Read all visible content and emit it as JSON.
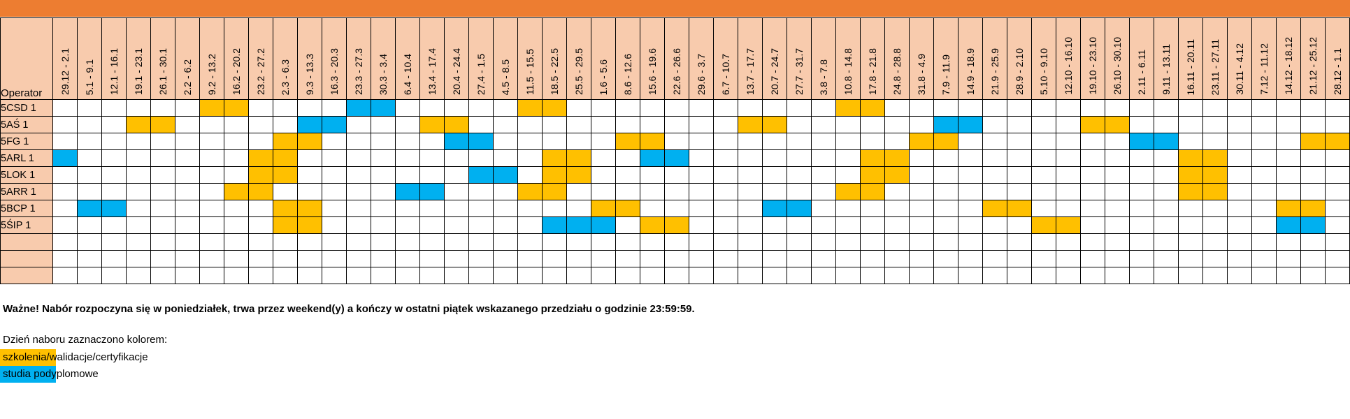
{
  "colors": {
    "top_band": "#ED7D31",
    "header_fill": "#F8CBAD",
    "training": "#FFC000",
    "postgrad": "#00B0F0",
    "empty": "#FFFFFF"
  },
  "table": {
    "operator_header": "Operator",
    "weeks": [
      "29.12 - 2.1",
      "5.1 - 9.1",
      "12.1 - 16.1",
      "19.1 - 23.1",
      "26.1 - 30.1",
      "2.2 - 6.2",
      "9.2 - 13.2",
      "16.2 - 20.2",
      "23.2 - 27.2",
      "2.3 - 6.3",
      "9.3 - 13.3",
      "16.3 - 20.3",
      "23.3 - 27.3",
      "30.3 - 3.4",
      "6.4 - 10.4",
      "13.4 - 17.4",
      "20.4 - 24.4",
      "27.4 - 1.5",
      "4.5 - 8.5",
      "11.5 - 15.5",
      "18.5 - 22.5",
      "25.5 - 29.5",
      "1.6 - 5.6",
      "8.6 - 12.6",
      "15.6 - 19.6",
      "22.6 - 26.6",
      "29.6 - 3.7",
      "6.7 - 10.7",
      "13.7 - 17.7",
      "20.7 - 24.7",
      "27.7 - 31.7",
      "3.8 - 7.8",
      "10.8 - 14.8",
      "17.8 - 21.8",
      "24.8 - 28.8",
      "31.8 - 4.9",
      "7.9 - 11.9",
      "14.9 - 18.9",
      "21.9 - 25.9",
      "28.9 - 2.10",
      "5.10 - 9.10",
      "12.10 - 16.10",
      "19.10 - 23.10",
      "26.10 - 30.10",
      "2.11 - 6.11",
      "9.11 - 13.11",
      "16.11 - 20.11",
      "23.11 - 27.11",
      "30.11 - 4.12",
      "7.12 - 11.12",
      "14.12 - 18.12",
      "21.12 - 25.12",
      "28.12 - 1.1"
    ],
    "rows": [
      {
        "operator": "5CSD 1",
        "cells": "000000yy0000bb00000yy00000000000yy00000000000000000000"
      },
      {
        "operator": "5AŚ 1",
        "cells": "000yy00000bb000yy00000000000yy000000bb0000yy00000000000"
      },
      {
        "operator": "5FG 1",
        "cells": "000000000yy00000bb00000yy0000000000yy0000000bb00000yy00"
      },
      {
        "operator": "5ARL 1",
        "cells": "b0000000yy0000000000yy00bb0000000yy00000000000yy0000000"
      },
      {
        "operator": "5LOK 1",
        "cells": "00000000yy0000000bb0yy00000000000yy00000000000yy0000000"
      },
      {
        "operator": "5ARR 1",
        "cells": "0000000yy00000bb000yy00000000000yy000000000000yy0000000"
      },
      {
        "operator": "5BCP 1",
        "cells": "0bb000000yy00000000000yy00000bb0000000yy0000000000yy00"
      },
      {
        "operator": "5ŚIP 1",
        "cells": "000000000yy000000000bbb0yy00000000000000yy00000000bb00"
      },
      {
        "operator": "",
        "cells": ""
      },
      {
        "operator": "",
        "cells": ""
      },
      {
        "operator": "",
        "cells": ""
      }
    ]
  },
  "notes": {
    "important": "Ważne! Nabór rozpoczyna się w poniedziałek, trwa przez weekend(y) a kończy w ostatni piątek wskazanego przedziału o godzinie 23:59:59.",
    "legend_intro": "Dzień naboru zaznaczono kolorem:",
    "legend_training": "szkolenia/walidacje/certyfikacje",
    "legend_postgrad": "studia podyplomowe"
  }
}
